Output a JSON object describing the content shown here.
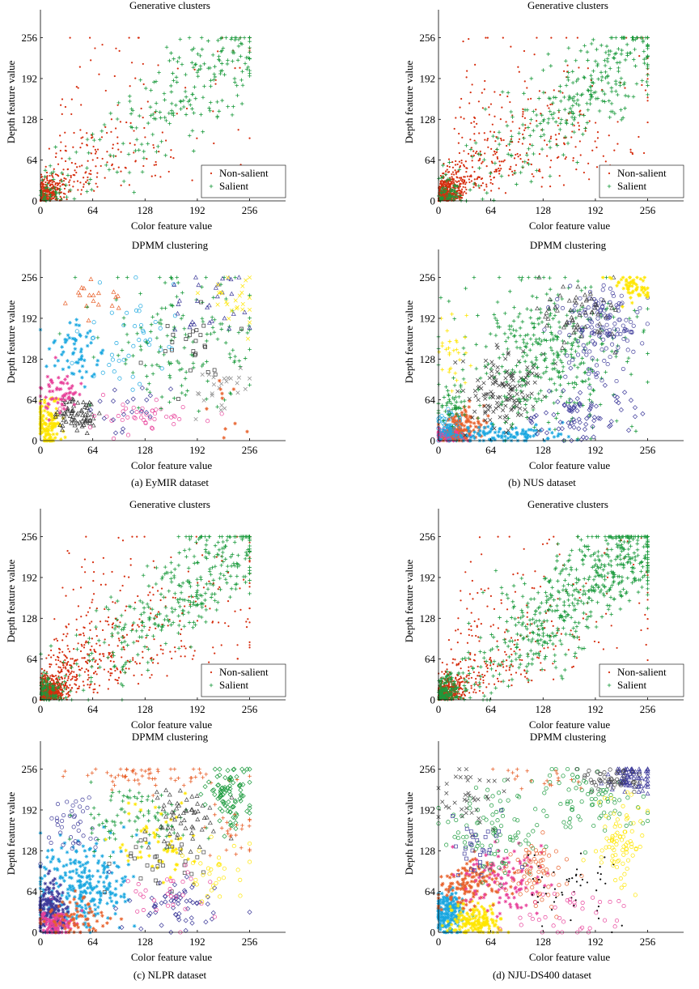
{
  "panels": [
    {
      "id": "a-gen",
      "type": "scatter",
      "title": "Generative clusters",
      "xlabel": "Color feature value",
      "ylabel": "Depth feature value",
      "xticks": [
        0,
        64,
        128,
        192,
        256
      ],
      "yticks": [
        0,
        64,
        128,
        192,
        256
      ],
      "xlim": [
        0,
        300
      ],
      "ylim": [
        0,
        300
      ],
      "legend": {
        "placement": "bottom-right",
        "entries": [
          "Non-salient",
          "Salient"
        ]
      },
      "series": [
        {
          "name": "Non-salient",
          "marker": "dot",
          "color": "#d62d0e",
          "count": 520,
          "pattern": "wedge-low"
        },
        {
          "name": "Salient",
          "marker": "plus",
          "color": "#1a9a3c",
          "count": 260,
          "pattern": "diagonal-high"
        }
      ]
    },
    {
      "id": "b-gen",
      "type": "scatter",
      "title": "Generative clusters",
      "xlabel": "Color feature value",
      "ylabel": "Depth feature value",
      "xticks": [
        0,
        64,
        128,
        192,
        256
      ],
      "yticks": [
        0,
        64,
        128,
        192,
        256
      ],
      "xlim": [
        0,
        300
      ],
      "ylim": [
        0,
        300
      ],
      "legend": {
        "placement": "bottom-right",
        "entries": [
          "Non-salient",
          "Salient"
        ]
      },
      "series": [
        {
          "name": "Non-salient",
          "marker": "dot",
          "color": "#d62d0e",
          "count": 900,
          "pattern": "wedge-low"
        },
        {
          "name": "Salient",
          "marker": "plus",
          "color": "#1a9a3c",
          "count": 360,
          "pattern": "diagonal-high"
        }
      ]
    },
    {
      "id": "a-dpmm",
      "type": "scatter",
      "title": "DPMM clustering",
      "xlabel": "Color feature value",
      "ylabel": "Depth feature value",
      "xticks": [
        0,
        64,
        128,
        192,
        256
      ],
      "yticks": [
        0,
        64,
        128,
        192,
        256
      ],
      "xlim": [
        0,
        300
      ],
      "ylim": [
        0,
        300
      ],
      "clusters": [
        {
          "marker": "star",
          "color": "#ffe600",
          "cx": 10,
          "cy": 25,
          "sx": 8,
          "sy": 20,
          "n": 140
        },
        {
          "marker": "triangle",
          "color": "#333333",
          "cx": 45,
          "cy": 40,
          "sx": 14,
          "sy": 14,
          "n": 70
        },
        {
          "marker": "star",
          "color": "#e8409a",
          "cx": 25,
          "cy": 75,
          "sx": 12,
          "sy": 16,
          "n": 60
        },
        {
          "marker": "star",
          "color": "#1aa7e0",
          "cx": 45,
          "cy": 140,
          "sx": 18,
          "sy": 25,
          "n": 60
        },
        {
          "marker": "triangle",
          "color": "#e8602a",
          "cx": 70,
          "cy": 225,
          "sx": 18,
          "sy": 18,
          "n": 18
        },
        {
          "marker": "circle",
          "color": "#1aa7e0",
          "cx": 110,
          "cy": 160,
          "sx": 30,
          "sy": 35,
          "n": 45
        },
        {
          "marker": "circle",
          "color": "#e8409a",
          "cx": 120,
          "cy": 40,
          "sx": 35,
          "sy": 15,
          "n": 45
        },
        {
          "marker": "plus",
          "color": "#1a9a3c",
          "cx": 170,
          "cy": 160,
          "sx": 50,
          "sy": 55,
          "n": 150
        },
        {
          "marker": "triangle",
          "color": "#3d3a9a",
          "cx": 205,
          "cy": 205,
          "sx": 25,
          "sy": 30,
          "n": 30
        },
        {
          "marker": "square",
          "color": "#333333",
          "cx": 185,
          "cy": 150,
          "sx": 25,
          "sy": 30,
          "n": 25
        },
        {
          "marker": "cross",
          "color": "#888888",
          "cx": 220,
          "cy": 80,
          "sx": 20,
          "sy": 25,
          "n": 25
        },
        {
          "marker": "cross",
          "color": "#ffe600",
          "cx": 235,
          "cy": 220,
          "sx": 15,
          "sy": 20,
          "n": 25
        },
        {
          "marker": "diamond",
          "color": "#3d3a9a",
          "cx": 90,
          "cy": 50,
          "sx": 25,
          "sy": 20,
          "n": 20
        },
        {
          "marker": "star",
          "color": "#e8602a",
          "cx": 225,
          "cy": 45,
          "sx": 20,
          "sy": 20,
          "n": 10
        }
      ]
    },
    {
      "id": "b-dpmm",
      "type": "scatter",
      "title": "DPMM clustering",
      "xlabel": "Color feature value",
      "ylabel": "Depth feature value",
      "xticks": [
        0,
        64,
        128,
        192,
        256
      ],
      "yticks": [
        0,
        64,
        128,
        192,
        256
      ],
      "xlim": [
        0,
        300
      ],
      "ylim": [
        0,
        300
      ],
      "clusters": [
        {
          "marker": "star",
          "color": "#e8409a",
          "cx": 15,
          "cy": 8,
          "sx": 10,
          "sy": 6,
          "n": 160
        },
        {
          "marker": "star",
          "color": "#e8602a",
          "cx": 30,
          "cy": 25,
          "sx": 14,
          "sy": 14,
          "n": 120
        },
        {
          "marker": "star",
          "color": "#1aa7e0",
          "cx": 80,
          "cy": 10,
          "sx": 35,
          "sy": 8,
          "n": 110
        },
        {
          "marker": "circle",
          "color": "#1aa7e0",
          "cx": 10,
          "cy": 20,
          "sx": 8,
          "sy": 15,
          "n": 60
        },
        {
          "marker": "cross",
          "color": "#333333",
          "cx": 80,
          "cy": 80,
          "sx": 25,
          "sy": 30,
          "n": 140
        },
        {
          "marker": "plus",
          "color": "#1a9a3c",
          "cx": 130,
          "cy": 140,
          "sx": 55,
          "sy": 60,
          "n": 380
        },
        {
          "marker": "circle",
          "color": "#3d3a9a",
          "cx": 200,
          "cy": 170,
          "sx": 25,
          "sy": 40,
          "n": 150
        },
        {
          "marker": "diamond",
          "color": "#3d3a9a",
          "cx": 170,
          "cy": 40,
          "sx": 35,
          "sy": 20,
          "n": 80
        },
        {
          "marker": "triangle",
          "color": "#444444",
          "cx": 175,
          "cy": 200,
          "sx": 25,
          "sy": 25,
          "n": 60
        },
        {
          "marker": "star",
          "color": "#ffe600",
          "cx": 235,
          "cy": 240,
          "sx": 12,
          "sy": 12,
          "n": 60
        },
        {
          "marker": "plus",
          "color": "#ffe600",
          "cx": 20,
          "cy": 140,
          "sx": 10,
          "sy": 35,
          "n": 30
        },
        {
          "marker": "plus",
          "color": "#1a9a3c",
          "cx": 15,
          "cy": 55,
          "sx": 10,
          "sy": 15,
          "n": 50
        }
      ]
    },
    {
      "id": "c-gen",
      "type": "scatter",
      "title": "Generative clusters",
      "xlabel": "Color feature value",
      "ylabel": "Depth feature value",
      "xticks": [
        0,
        64,
        128,
        192,
        256
      ],
      "yticks": [
        0,
        64,
        128,
        192,
        256
      ],
      "xlim": [
        0,
        300
      ],
      "ylim": [
        0,
        300
      ],
      "legend": {
        "placement": "bottom-right",
        "entries": [
          "Non-salient",
          "Salient"
        ]
      },
      "series": [
        {
          "name": "Non-salient",
          "marker": "dot",
          "color": "#d62d0e",
          "count": 1100,
          "pattern": "wedge-low"
        },
        {
          "name": "Salient",
          "marker": "plus",
          "color": "#1a9a3c",
          "count": 420,
          "pattern": "diagonal-high"
        }
      ]
    },
    {
      "id": "d-gen",
      "type": "scatter",
      "title": "Generative clusters",
      "xlabel": "Color feature value",
      "ylabel": "Depth feature value",
      "xticks": [
        0,
        64,
        128,
        192,
        256
      ],
      "yticks": [
        0,
        64,
        128,
        192,
        256
      ],
      "xlim": [
        0,
        300
      ],
      "ylim": [
        0,
        300
      ],
      "legend": {
        "placement": "bottom-right",
        "entries": [
          "Non-salient",
          "Salient"
        ]
      },
      "series": [
        {
          "name": "Non-salient",
          "marker": "dot",
          "color": "#d62d0e",
          "count": 700,
          "pattern": "wedge-low"
        },
        {
          "name": "Salient",
          "marker": "plus",
          "color": "#1a9a3c",
          "count": 700,
          "pattern": "diagonal-high"
        }
      ]
    },
    {
      "id": "c-dpmm",
      "type": "scatter",
      "title": "DPMM clustering",
      "xlabel": "Color feature value",
      "ylabel": "Depth feature value",
      "xticks": [
        0,
        64,
        128,
        192,
        256
      ],
      "yticks": [
        0,
        64,
        128,
        192,
        256
      ],
      "xlim": [
        0,
        300
      ],
      "ylim": [
        0,
        300
      ],
      "clusters": [
        {
          "marker": "star",
          "color": "#1aa7e0",
          "cx": 55,
          "cy": 75,
          "sx": 30,
          "sy": 35,
          "n": 260
        },
        {
          "marker": "star",
          "color": "#3d3a9a",
          "cx": 12,
          "cy": 35,
          "sx": 10,
          "sy": 22,
          "n": 200
        },
        {
          "marker": "star",
          "color": "#e8409a",
          "cx": 20,
          "cy": 15,
          "sx": 12,
          "sy": 10,
          "n": 90
        },
        {
          "marker": "star",
          "color": "#e8602a",
          "cx": 40,
          "cy": 20,
          "sx": 20,
          "sy": 15,
          "n": 70
        },
        {
          "marker": "circle",
          "color": "#3d3a9a",
          "cx": 40,
          "cy": 160,
          "sx": 18,
          "sy": 25,
          "n": 40
        },
        {
          "marker": "plus",
          "color": "#e8602a",
          "cx": 140,
          "cy": 245,
          "sx": 55,
          "sy": 10,
          "n": 60
        },
        {
          "marker": "plus",
          "color": "#1a9a3c",
          "cx": 110,
          "cy": 180,
          "sx": 35,
          "sy": 30,
          "n": 90
        },
        {
          "marker": "star",
          "color": "#ffe600",
          "cx": 150,
          "cy": 145,
          "sx": 25,
          "sy": 30,
          "n": 60
        },
        {
          "marker": "triangle",
          "color": "#444444",
          "cx": 175,
          "cy": 175,
          "sx": 20,
          "sy": 25,
          "n": 60
        },
        {
          "marker": "square",
          "color": "#444444",
          "cx": 145,
          "cy": 110,
          "sx": 25,
          "sy": 20,
          "n": 30
        },
        {
          "marker": "diamond",
          "color": "#1a9a3c",
          "cx": 230,
          "cy": 215,
          "sx": 15,
          "sy": 25,
          "n": 90
        },
        {
          "marker": "diamond",
          "color": "#3d3a9a",
          "cx": 170,
          "cy": 45,
          "sx": 35,
          "sy": 25,
          "n": 60
        },
        {
          "marker": "circle",
          "color": "#e8409a",
          "cx": 150,
          "cy": 60,
          "sx": 35,
          "sy": 25,
          "n": 30
        },
        {
          "marker": "circle",
          "color": "#ffe600",
          "cx": 215,
          "cy": 95,
          "sx": 20,
          "sy": 25,
          "n": 30
        },
        {
          "marker": "plus",
          "color": "#e8602a",
          "cx": 230,
          "cy": 160,
          "sx": 15,
          "sy": 20,
          "n": 25
        }
      ]
    },
    {
      "id": "d-dpmm",
      "type": "scatter",
      "title": "DPMM clustering",
      "xlabel": "Color feature value",
      "ylabel": "Depth feature value",
      "xticks": [
        0,
        64,
        128,
        192,
        256
      ],
      "yticks": [
        0,
        64,
        128,
        192,
        256
      ],
      "xlim": [
        0,
        300
      ],
      "ylim": [
        0,
        300
      ],
      "clusters": [
        {
          "marker": "star",
          "color": "#1aa7e0",
          "cx": 12,
          "cy": 30,
          "sx": 10,
          "sy": 18,
          "n": 200
        },
        {
          "marker": "star",
          "color": "#ffe600",
          "cx": 45,
          "cy": 18,
          "sx": 15,
          "sy": 12,
          "n": 160
        },
        {
          "marker": "star",
          "color": "#e8602a",
          "cx": 35,
          "cy": 75,
          "sx": 20,
          "sy": 20,
          "n": 130
        },
        {
          "marker": "star",
          "color": "#e8409a",
          "cx": 80,
          "cy": 80,
          "sx": 25,
          "sy": 30,
          "n": 110
        },
        {
          "marker": "circle",
          "color": "#1a9a3c",
          "cx": 70,
          "cy": 160,
          "sx": 30,
          "sy": 35,
          "n": 90
        },
        {
          "marker": "circle",
          "color": "#e8602a",
          "cx": 120,
          "cy": 95,
          "sx": 20,
          "sy": 25,
          "n": 70
        },
        {
          "marker": "dot",
          "color": "#111111",
          "cx": 160,
          "cy": 75,
          "sx": 25,
          "sy": 25,
          "n": 50
        },
        {
          "marker": "circle",
          "color": "#1a9a3c",
          "cx": 180,
          "cy": 210,
          "sx": 30,
          "sy": 25,
          "n": 80
        },
        {
          "marker": "triangle",
          "color": "#3d3a9a",
          "cx": 235,
          "cy": 240,
          "sx": 15,
          "sy": 10,
          "n": 80
        },
        {
          "marker": "circle",
          "color": "#444444",
          "cx": 210,
          "cy": 240,
          "sx": 20,
          "sy": 10,
          "n": 50
        },
        {
          "marker": "circle",
          "color": "#ffe600",
          "cx": 225,
          "cy": 150,
          "sx": 15,
          "sy": 40,
          "n": 80
        },
        {
          "marker": "cross",
          "color": "#444444",
          "cx": 40,
          "cy": 210,
          "sx": 20,
          "sy": 25,
          "n": 40
        },
        {
          "marker": "plus",
          "color": "#e8602a",
          "cx": 110,
          "cy": 240,
          "sx": 25,
          "sy": 10,
          "n": 20
        },
        {
          "marker": "circle",
          "color": "#e8409a",
          "cx": 160,
          "cy": 30,
          "sx": 30,
          "sy": 20,
          "n": 40
        },
        {
          "marker": "square",
          "color": "#3d3a9a",
          "cx": 50,
          "cy": 130,
          "sx": 20,
          "sy": 25,
          "n": 30
        }
      ]
    }
  ],
  "captions": {
    "a": "(a) EyMIR dataset",
    "b": "(b) NUS dataset",
    "c": "(c) NLPR dataset",
    "d": "(d) NJU-DS400 dataset"
  },
  "chart_data": [
    {
      "type": "scatter",
      "title": "Generative clusters",
      "subfigure": "(a) EyMIR dataset",
      "xlabel": "Color feature value",
      "ylabel": "Depth feature value",
      "xlim": [
        0,
        300
      ],
      "ylim": [
        0,
        300
      ],
      "legend": [
        "Non-salient",
        "Salient"
      ]
    },
    {
      "type": "scatter",
      "title": "DPMM clustering",
      "subfigure": "(a) EyMIR dataset",
      "xlabel": "Color feature value",
      "ylabel": "Depth feature value",
      "xlim": [
        0,
        300
      ],
      "ylim": [
        0,
        300
      ]
    },
    {
      "type": "scatter",
      "title": "Generative clusters",
      "subfigure": "(b) NUS dataset",
      "xlabel": "Color feature value",
      "ylabel": "Depth feature value",
      "xlim": [
        0,
        300
      ],
      "ylim": [
        0,
        300
      ],
      "legend": [
        "Non-salient",
        "Salient"
      ]
    },
    {
      "type": "scatter",
      "title": "DPMM clustering",
      "subfigure": "(b) NUS dataset",
      "xlabel": "Color feature value",
      "ylabel": "Depth feature value",
      "xlim": [
        0,
        300
      ],
      "ylim": [
        0,
        300
      ]
    },
    {
      "type": "scatter",
      "title": "Generative clusters",
      "subfigure": "(c) NLPR dataset",
      "xlabel": "Color feature value",
      "ylabel": "Depth feature value",
      "xlim": [
        0,
        300
      ],
      "ylim": [
        0,
        300
      ],
      "legend": [
        "Non-salient",
        "Salient"
      ]
    },
    {
      "type": "scatter",
      "title": "DPMM clustering",
      "subfigure": "(c) NLPR dataset",
      "xlabel": "Color feature value",
      "ylabel": "Depth feature value",
      "xlim": [
        0,
        300
      ],
      "ylim": [
        0,
        300
      ]
    },
    {
      "type": "scatter",
      "title": "Generative clusters",
      "subfigure": "(d) NJU-DS400 dataset",
      "xlabel": "Color feature value",
      "ylabel": "Depth feature value",
      "xlim": [
        0,
        300
      ],
      "ylim": [
        0,
        300
      ],
      "legend": [
        "Non-salient",
        "Salient"
      ]
    },
    {
      "type": "scatter",
      "title": "DPMM clustering",
      "subfigure": "(d) NJU-DS400 dataset",
      "xlabel": "Color feature value",
      "ylabel": "Depth feature value",
      "xlim": [
        0,
        300
      ],
      "ylim": [
        0,
        300
      ]
    }
  ]
}
